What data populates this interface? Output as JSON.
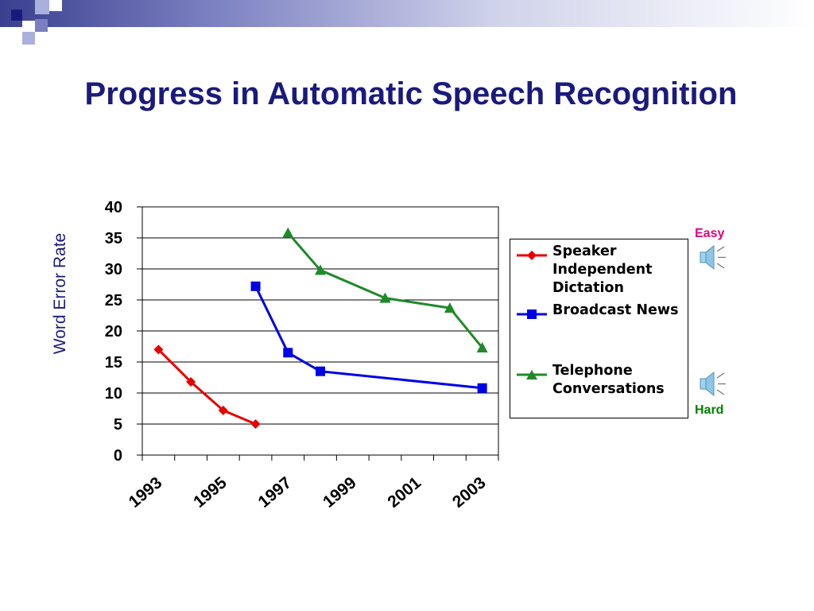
{
  "slide": {
    "title": "Progress in Automatic Speech Recognition"
  },
  "difficulty": {
    "easy_label": "Easy",
    "hard_label": "Hard",
    "easy_color": "#e6007e",
    "hard_color": "#008000",
    "icon": "speaker-icon"
  },
  "chart_data": {
    "type": "line",
    "ylabel": "Word Error Rate",
    "xlabel": "",
    "ylim": [
      0,
      40
    ],
    "yticks": [
      "0",
      "5",
      "10",
      "15",
      "20",
      "25",
      "30",
      "35",
      "40"
    ],
    "xlim": [
      1993,
      2004
    ],
    "xticks": [
      "1993",
      "1995",
      "1997",
      "1999",
      "2001",
      "2003"
    ],
    "grid": "horizontal",
    "legend_position": "right",
    "series": [
      {
        "name": "Speaker Independent Dictation",
        "color": "#e60000",
        "marker": "diamond",
        "x": [
          1993.5,
          1994.5,
          1995.5,
          1996.5
        ],
        "y": [
          17,
          11.8,
          7.2,
          5
        ]
      },
      {
        "name": "Broadcast News",
        "color": "#0000e6",
        "marker": "square",
        "x": [
          1996.5,
          1997.5,
          1998.5,
          2003.5
        ],
        "y": [
          27.2,
          16.5,
          13.5,
          10.8
        ]
      },
      {
        "name": "Telephone Conversations",
        "color": "#1f8a2a",
        "marker": "triangle",
        "x": [
          1997.5,
          1998.5,
          2000.5,
          2002.5,
          2003.5
        ],
        "y": [
          35.8,
          29.8,
          25.3,
          23.7,
          17.3
        ]
      }
    ]
  }
}
